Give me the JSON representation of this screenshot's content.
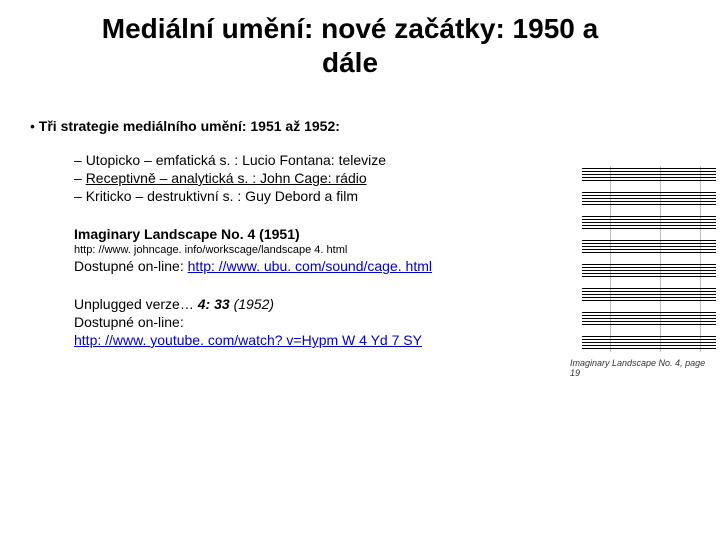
{
  "title": "Mediální umění: nové začátky: 1950 a dále",
  "main_bullet": "Tři strategie mediálního umění: 1951 až 1952:",
  "subs": [
    {
      "plain": "Utopicko – emfatická s. : Lucio Fontana: televize",
      "under": ""
    },
    {
      "plain": "",
      "under": "Receptivně – analytická s. : John Cage: rádio"
    },
    {
      "plain": "Kriticko – destruktivní s. : Guy Debord a film",
      "under": ""
    }
  ],
  "ref1": {
    "heading": "Imaginary Landscape No. 4 (1951)",
    "small": "http: //www. johncage. info/workscage/landscape 4. html",
    "avail_label": "Dostupné on-line: ",
    "avail_link": "http: //www. ubu. com/sound/cage. html"
  },
  "ref2": {
    "l1a": "Unplugged verze… ",
    "l1b": "4: 33 ",
    "l1c": "(1952)",
    "l2": "Dostupné on-line:",
    "link": "http: //www. youtube. com/watch? v=Hypm W 4 Yd 7 SY"
  },
  "score": {
    "caption": "Imaginary Landscape No. 4, page 19",
    "stave_tops": [
      18,
      42,
      66,
      90,
      114,
      138,
      162,
      186
    ]
  }
}
